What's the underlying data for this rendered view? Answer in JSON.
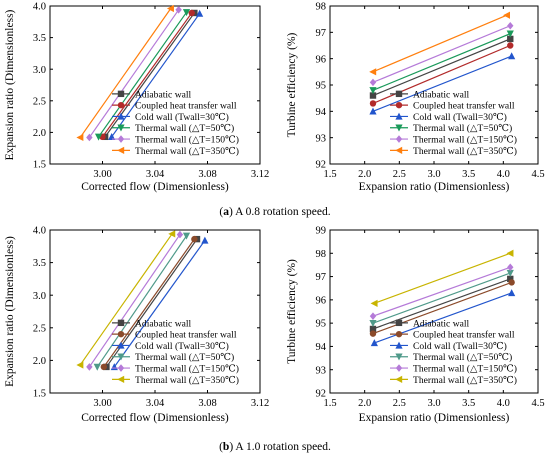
{
  "captions": [
    {
      "prefix": "(",
      "letter": "a",
      "text": ") A 0.8 rotation speed."
    },
    {
      "prefix": "(",
      "letter": "b",
      "text": ") A 1.0 rotation speed."
    }
  ],
  "chart_data": [
    {
      "type": "line",
      "xlabel": "Corrected flow (Dimensionless)",
      "ylabel": "Expansion ratio (Dimensionless)",
      "xlim": [
        2.96,
        3.12
      ],
      "ylim": [
        1.5,
        4.0
      ],
      "xticks": [
        "3.00",
        "3.04",
        "3.08",
        "3.12"
      ],
      "yticks": [
        "1.5",
        "2.0",
        "2.5",
        "3.0",
        "3.5",
        "4.0"
      ],
      "legend_position": "bottom-right",
      "series": [
        {
          "name": "Adiabatic wall",
          "color": "#444444",
          "marker": "square",
          "x": [
            3.002,
            3.07
          ],
          "y": [
            1.93,
            3.89
          ]
        },
        {
          "name": "Coupled heat transfer wall",
          "color": "#b22a2a",
          "marker": "circle",
          "x": [
            3.0,
            3.068
          ],
          "y": [
            1.93,
            3.89
          ]
        },
        {
          "name": "Cold wall (Twall=30℃)",
          "color": "#2255cc",
          "marker": "triangle-up",
          "x": [
            3.007,
            3.074
          ],
          "y": [
            1.93,
            3.88
          ]
        },
        {
          "name": "Thermal wall (△T=50℃)",
          "color": "#1a9a5a",
          "marker": "triangle-down",
          "x": [
            2.997,
            3.064
          ],
          "y": [
            1.93,
            3.9
          ]
        },
        {
          "name": "Thermal wall (△T=150℃)",
          "color": "#b57ad8",
          "marker": "diamond",
          "x": [
            2.99,
            3.058
          ],
          "y": [
            1.92,
            3.94
          ]
        },
        {
          "name": "Thermal wall (△T=350℃)",
          "color": "#ff7f0e",
          "marker": "triangle-left",
          "x": [
            2.983,
            3.052
          ],
          "y": [
            1.92,
            3.96
          ]
        }
      ]
    },
    {
      "type": "line",
      "xlabel": "Expansion ratio (Dimensionless)",
      "ylabel": "Turbine efficiency (%)",
      "xlim": [
        1.5,
        4.5
      ],
      "ylim": [
        92,
        98
      ],
      "xticks": [
        "1.5",
        "2.0",
        "2.5",
        "3.0",
        "3.5",
        "4.0",
        "4.5"
      ],
      "yticks": [
        "92",
        "93",
        "94",
        "95",
        "96",
        "97",
        "98"
      ],
      "legend_position": "bottom-right",
      "series": [
        {
          "name": "Adiabatic wall",
          "color": "#444444",
          "marker": "square",
          "x": [
            2.12,
            4.1
          ],
          "y": [
            94.6,
            96.75
          ]
        },
        {
          "name": "Coupled heat transfer wall",
          "color": "#b22a2a",
          "marker": "circle",
          "x": [
            2.12,
            4.1
          ],
          "y": [
            94.3,
            96.5
          ]
        },
        {
          "name": "Cold wall (Twall=30℃)",
          "color": "#2255cc",
          "marker": "triangle-up",
          "x": [
            2.12,
            4.12
          ],
          "y": [
            94.0,
            96.1
          ]
        },
        {
          "name": "Thermal wall (△T=50℃)",
          "color": "#1a9a5a",
          "marker": "triangle-down",
          "x": [
            2.12,
            4.1
          ],
          "y": [
            94.8,
            96.95
          ]
        },
        {
          "name": "Thermal wall (△T=150℃)",
          "color": "#b57ad8",
          "marker": "diamond",
          "x": [
            2.12,
            4.1
          ],
          "y": [
            95.1,
            97.25
          ]
        },
        {
          "name": "Thermal wall (△T=350℃)",
          "color": "#ff7f0e",
          "marker": "triangle-left",
          "x": [
            2.12,
            4.05
          ],
          "y": [
            95.5,
            97.65
          ]
        }
      ]
    },
    {
      "type": "line",
      "xlabel": "Corrected flow (Dimensionless)",
      "ylabel": "Expansion ratio (Dimensionless)",
      "xlim": [
        2.96,
        3.12
      ],
      "ylim": [
        1.5,
        4.0
      ],
      "xticks": [
        "3.00",
        "3.04",
        "3.08",
        "3.12"
      ],
      "yticks": [
        "1.5",
        "2.0",
        "2.5",
        "3.0",
        "3.5",
        "4.0"
      ],
      "legend_position": "bottom-right",
      "series": [
        {
          "name": "Adiabatic wall",
          "color": "#444444",
          "marker": "square",
          "x": [
            3.003,
            3.072
          ],
          "y": [
            1.9,
            3.86
          ]
        },
        {
          "name": "Coupled heat transfer wall",
          "color": "#8b4a2a",
          "marker": "circle",
          "x": [
            3.001,
            3.07
          ],
          "y": [
            1.9,
            3.86
          ]
        },
        {
          "name": "Cold wall (Twall=30℃)",
          "color": "#2255cc",
          "marker": "triangle-up",
          "x": [
            3.009,
            3.078
          ],
          "y": [
            1.9,
            3.84
          ]
        },
        {
          "name": "Thermal wall (△T=50℃)",
          "color": "#4f9a8a",
          "marker": "triangle-down",
          "x": [
            2.996,
            3.064
          ],
          "y": [
            1.9,
            3.91
          ]
        },
        {
          "name": "Thermal wall (△T=150℃)",
          "color": "#b57ad8",
          "marker": "diamond",
          "x": [
            2.99,
            3.059
          ],
          "y": [
            1.9,
            3.93
          ]
        },
        {
          "name": "Thermal wall (△T=350℃)",
          "color": "#c8b400",
          "marker": "triangle-left",
          "x": [
            2.983,
            3.053
          ],
          "y": [
            1.93,
            3.94
          ]
        }
      ]
    },
    {
      "type": "line",
      "xlabel": "Expansion ratio (Dimensionless)",
      "ylabel": "Turbine efficiency (%)",
      "xlim": [
        1.5,
        4.5
      ],
      "ylim": [
        92,
        99
      ],
      "xticks": [
        "1.5",
        "2.0",
        "2.5",
        "3.0",
        "3.5",
        "4.0",
        "4.5"
      ],
      "yticks": [
        "92",
        "93",
        "94",
        "95",
        "96",
        "97",
        "98",
        "99"
      ],
      "legend_position": "bottom-right",
      "series": [
        {
          "name": "Adiabatic wall",
          "color": "#444444",
          "marker": "square",
          "x": [
            2.12,
            4.1
          ],
          "y": [
            94.75,
            96.9
          ]
        },
        {
          "name": "Coupled heat transfer wall",
          "color": "#8b4a2a",
          "marker": "circle",
          "x": [
            2.12,
            4.12
          ],
          "y": [
            94.55,
            96.75
          ]
        },
        {
          "name": "Cold wall (Twall=30℃)",
          "color": "#2255cc",
          "marker": "triangle-up",
          "x": [
            2.14,
            4.12
          ],
          "y": [
            94.15,
            96.3
          ]
        },
        {
          "name": "Thermal wall (△T=50℃)",
          "color": "#4f9a8a",
          "marker": "triangle-down",
          "x": [
            2.12,
            4.1
          ],
          "y": [
            95.0,
            97.15
          ]
        },
        {
          "name": "Thermal wall (△T=150℃)",
          "color": "#b57ad8",
          "marker": "diamond",
          "x": [
            2.12,
            4.1
          ],
          "y": [
            95.3,
            97.4
          ]
        },
        {
          "name": "Thermal wall (△T=350℃)",
          "color": "#c8b400",
          "marker": "triangle-left",
          "x": [
            2.14,
            4.1
          ],
          "y": [
            95.85,
            98.0
          ]
        }
      ]
    }
  ]
}
